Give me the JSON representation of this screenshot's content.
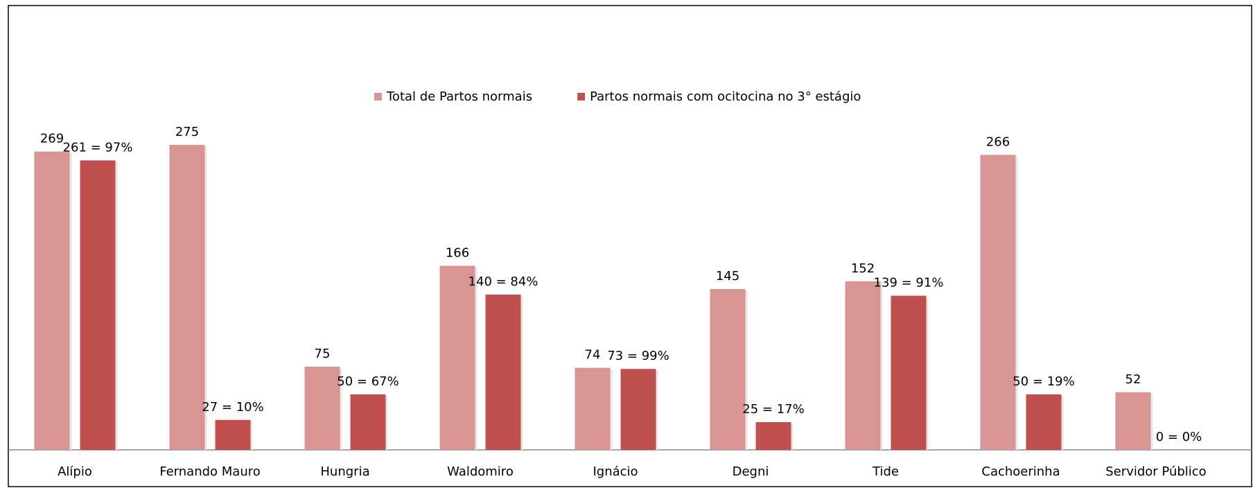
{
  "chart_data": {
    "type": "bar",
    "categories": [
      "Alípio",
      "Fernando Mauro",
      "Hungria",
      "Waldomiro",
      "Ignácio",
      "Degni",
      "Tide",
      "Cachoerinha",
      "Servidor Público"
    ],
    "series": [
      {
        "name": "Total de Partos normais",
        "color": "#d99594",
        "values": [
          269,
          275,
          75,
          166,
          74,
          145,
          152,
          266,
          52
        ]
      },
      {
        "name": "Partos normais com ocitocina no 3° estágio",
        "color": "#c0504d",
        "values": [
          261,
          27,
          50,
          140,
          73,
          25,
          139,
          50,
          0
        ],
        "value_labels": [
          "261 = 97%",
          "27 = 10%",
          "50 = 67%",
          "140 = 84%",
          "73 = 99%",
          "25 = 17%",
          "139 = 91%",
          "50 = 19%",
          "0 = 0%"
        ]
      }
    ],
    "legend": "top"
  }
}
